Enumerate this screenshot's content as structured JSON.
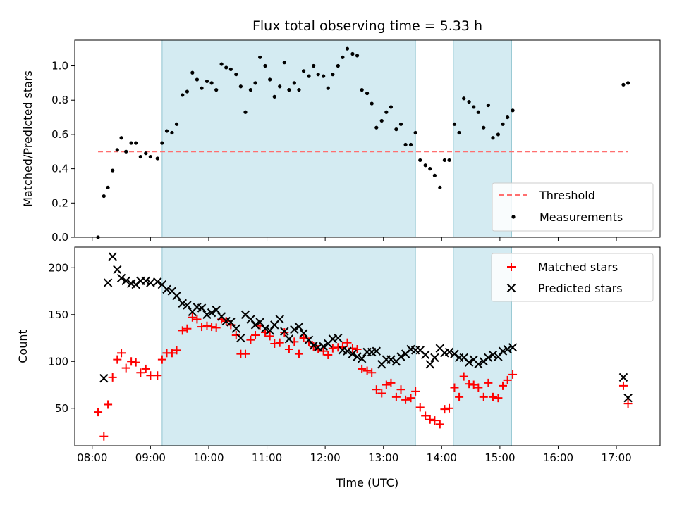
{
  "chart_data": {
    "type": "scatter",
    "title": "Flux total observing time = 5.33 h",
    "xlabel": "Time (UTC)",
    "x_ticks": [
      "08:00",
      "09:00",
      "10:00",
      "11:00",
      "12:00",
      "13:00",
      "14:00",
      "15:00",
      "16:00",
      "17:00"
    ],
    "xlim_hours": [
      7.7,
      17.75
    ],
    "shaded_intervals_hours": [
      [
        9.2,
        13.55
      ],
      [
        14.2,
        15.2
      ]
    ],
    "colors": {
      "shade": "#add8e6",
      "threshold": "#ff6f6f",
      "matched": "#ff0000",
      "predicted": "#000000",
      "measurement": "#000000"
    },
    "panels": [
      {
        "ylabel": "Matched/Predicted stars",
        "ylim": [
          0,
          1.15
        ],
        "y_ticks": [
          "0.0",
          "0.2",
          "0.4",
          "0.6",
          "0.8",
          "1.0"
        ],
        "legend_position": "lower right",
        "threshold": {
          "name": "Threshold",
          "x_range_hours": [
            8.1,
            17.2
          ],
          "y": 0.5
        },
        "series": [
          {
            "name": "Measurements",
            "marker": "dot",
            "x": [
              8.1,
              8.2,
              8.27,
              8.35,
              8.43,
              8.5,
              8.58,
              8.67,
              8.75,
              8.83,
              8.92,
              9.0,
              9.12,
              9.2,
              9.28,
              9.37,
              9.45,
              9.55,
              9.63,
              9.72,
              9.8,
              9.88,
              9.97,
              10.05,
              10.13,
              10.22,
              10.3,
              10.38,
              10.47,
              10.55,
              10.63,
              10.72,
              10.8,
              10.88,
              10.97,
              11.05,
              11.13,
              11.22,
              11.3,
              11.38,
              11.47,
              11.55,
              11.63,
              11.72,
              11.8,
              11.88,
              11.97,
              12.05,
              12.13,
              12.22,
              12.3,
              12.38,
              12.47,
              12.55,
              12.63,
              12.72,
              12.8,
              12.88,
              12.97,
              13.05,
              13.13,
              13.22,
              13.3,
              13.38,
              13.47,
              13.55,
              13.63,
              13.72,
              13.8,
              13.88,
              13.97,
              14.05,
              14.13,
              14.22,
              14.3,
              14.38,
              14.47,
              14.55,
              14.63,
              14.72,
              14.8,
              14.88,
              14.97,
              15.05,
              15.13,
              15.22,
              17.12,
              17.2
            ],
            "y": [
              0.0,
              0.24,
              0.29,
              0.39,
              0.51,
              0.58,
              0.5,
              0.55,
              0.55,
              0.47,
              0.49,
              0.47,
              0.46,
              0.55,
              0.62,
              0.61,
              0.66,
              0.83,
              0.85,
              0.96,
              0.92,
              0.87,
              0.91,
              0.9,
              0.86,
              1.01,
              0.99,
              0.98,
              0.95,
              0.88,
              0.73,
              0.86,
              0.9,
              1.05,
              1.0,
              0.92,
              0.82,
              0.88,
              1.02,
              0.86,
              0.9,
              0.86,
              0.97,
              0.94,
              1.0,
              0.95,
              0.94,
              0.87,
              0.95,
              1.0,
              1.05,
              1.1,
              1.07,
              1.06,
              0.86,
              0.84,
              0.78,
              0.64,
              0.68,
              0.73,
              0.76,
              0.63,
              0.66,
              0.54,
              0.54,
              0.61,
              0.45,
              0.42,
              0.4,
              0.36,
              0.29,
              0.45,
              0.45,
              0.66,
              0.61,
              0.81,
              0.79,
              0.76,
              0.73,
              0.64,
              0.77,
              0.58,
              0.6,
              0.66,
              0.7,
              0.74,
              0.89,
              0.9
            ]
          }
        ]
      },
      {
        "ylabel": "Count",
        "ylim": [
          10,
          222
        ],
        "y_ticks": [
          "50",
          "100",
          "150",
          "200"
        ],
        "legend_position": "upper right",
        "series": [
          {
            "name": "Matched stars",
            "marker": "plus",
            "x": [
              8.1,
              8.2,
              8.27,
              8.35,
              8.43,
              8.5,
              8.58,
              8.67,
              8.75,
              8.83,
              8.92,
              9.0,
              9.12,
              9.2,
              9.28,
              9.37,
              9.45,
              9.55,
              9.63,
              9.72,
              9.8,
              9.88,
              9.97,
              10.05,
              10.13,
              10.22,
              10.3,
              10.38,
              10.47,
              10.55,
              10.63,
              10.72,
              10.8,
              10.88,
              10.97,
              11.05,
              11.13,
              11.22,
              11.3,
              11.38,
              11.47,
              11.55,
              11.63,
              11.72,
              11.8,
              11.88,
              11.97,
              12.05,
              12.13,
              12.22,
              12.3,
              12.38,
              12.47,
              12.55,
              12.63,
              12.72,
              12.8,
              12.88,
              12.97,
              13.05,
              13.13,
              13.22,
              13.3,
              13.38,
              13.47,
              13.55,
              13.63,
              13.72,
              13.8,
              13.88,
              13.97,
              14.05,
              14.13,
              14.22,
              14.3,
              14.38,
              14.47,
              14.55,
              14.63,
              14.72,
              14.8,
              14.88,
              14.97,
              15.05,
              15.13,
              15.22,
              17.12,
              17.2
            ],
            "y": [
              46,
              20,
              54,
              83,
              102,
              109,
              93,
              100,
              99,
              88,
              92,
              85,
              85,
              102,
              109,
              109,
              112,
              133,
              135,
              147,
              145,
              137,
              138,
              137,
              136,
              145,
              143,
              139,
              128,
              108,
              108,
              123,
              128,
              138,
              131,
              127,
              119,
              120,
              131,
              113,
              121,
              108,
              125,
              121,
              116,
              113,
              111,
              107,
              114,
              115,
              116,
              120,
              114,
              113,
              92,
              90,
              88,
              70,
              66,
              75,
              77,
              62,
              70,
              59,
              61,
              68,
              51,
              42,
              38,
              37,
              33,
              49,
              50,
              72,
              62,
              84,
              76,
              75,
              72,
              62,
              77,
              62,
              61,
              74,
              80,
              86,
              74,
              55
            ]
          },
          {
            "name": "Predicted stars",
            "marker": "x",
            "x": [
              8.2,
              8.27,
              8.35,
              8.43,
              8.5,
              8.58,
              8.67,
              8.75,
              8.83,
              8.92,
              9.0,
              9.12,
              9.2,
              9.28,
              9.37,
              9.45,
              9.55,
              9.63,
              9.72,
              9.8,
              9.88,
              9.97,
              10.05,
              10.13,
              10.22,
              10.3,
              10.38,
              10.47,
              10.55,
              10.63,
              10.72,
              10.8,
              10.88,
              10.97,
              11.05,
              11.13,
              11.22,
              11.3,
              11.38,
              11.47,
              11.55,
              11.63,
              11.72,
              11.8,
              11.88,
              11.97,
              12.05,
              12.13,
              12.22,
              12.3,
              12.38,
              12.47,
              12.55,
              12.63,
              12.72,
              12.8,
              12.88,
              12.97,
              13.05,
              13.13,
              13.22,
              13.3,
              13.38,
              13.47,
              13.55,
              13.63,
              13.72,
              13.8,
              13.88,
              13.97,
              14.05,
              14.13,
              14.22,
              14.3,
              14.38,
              14.47,
              14.55,
              14.63,
              14.72,
              14.8,
              14.88,
              14.97,
              15.05,
              15.13,
              15.22,
              17.12,
              17.2
            ],
            "y": [
              82,
              184,
              212,
              198,
              189,
              186,
              183,
              182,
              186,
              186,
              184,
              185,
              182,
              177,
              175,
              170,
              162,
              160,
              153,
              158,
              157,
              150,
              152,
              155,
              148,
              143,
              142,
              135,
              125,
              150,
              145,
              139,
              142,
              135,
              133,
              139,
              145,
              132,
              124,
              134,
              137,
              130,
              123,
              117,
              115,
              116,
              119,
              124,
              125,
              112,
              111,
              108,
              105,
              103,
              110,
              110,
              111,
              97,
              102,
              102,
              100,
              105,
              108,
              113,
              112,
              112,
              107,
              97,
              104,
              114,
              109,
              110,
              108,
              104,
              104,
              99,
              102,
              97,
              100,
              104,
              107,
              105,
              111,
              113,
              115,
              83,
              61
            ]
          }
        ]
      }
    ]
  }
}
